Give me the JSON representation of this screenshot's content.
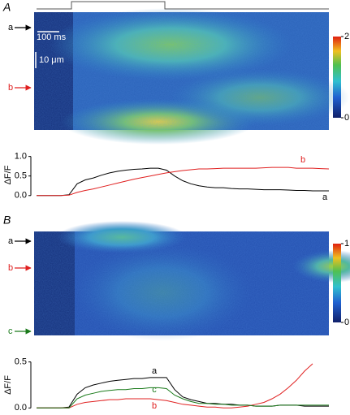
{
  "chart_data": [
    {
      "type": "line",
      "panel": "A",
      "ylabel": "ΔF/F",
      "scale_bars": [
        "100 ms",
        "10 μm"
      ],
      "ylim": [
        -0.15,
        1.2
      ],
      "yticks": [
        {
          "value": 0,
          "label": "0.0"
        },
        {
          "value": 0.5,
          "label": "0.5"
        },
        {
          "value": 1,
          "label": "1.0"
        }
      ],
      "colorbar": {
        "lim": [
          0,
          2
        ],
        "ticks": [
          0,
          2
        ]
      },
      "series": [
        {
          "name": "a",
          "color": "#000000",
          "values": [
            0,
            0,
            0,
            0,
            0.02,
            0.3,
            0.4,
            0.45,
            0.52,
            0.58,
            0.62,
            0.65,
            0.67,
            0.68,
            0.7,
            0.7,
            0.65,
            0.5,
            0.38,
            0.3,
            0.25,
            0.22,
            0.2,
            0.2,
            0.18,
            0.17,
            0.17,
            0.16,
            0.15,
            0.15,
            0.15,
            0.14,
            0.13,
            0.13,
            0.12,
            0.12,
            0.12
          ]
        },
        {
          "name": "b",
          "color": "#e02020",
          "values": [
            0,
            0,
            0,
            0,
            0.01,
            0.08,
            0.13,
            0.17,
            0.22,
            0.27,
            0.32,
            0.37,
            0.42,
            0.46,
            0.5,
            0.54,
            0.58,
            0.61,
            0.64,
            0.66,
            0.68,
            0.68,
            0.69,
            0.7,
            0.7,
            0.7,
            0.7,
            0.7,
            0.71,
            0.72,
            0.72,
            0.72,
            0.7,
            0.7,
            0.7,
            0.69,
            0.68
          ]
        }
      ]
    },
    {
      "type": "line",
      "panel": "B",
      "ylabel": "ΔF/F",
      "ylim": [
        -0.05,
        0.55
      ],
      "yticks": [
        {
          "value": 0,
          "label": "0.0"
        },
        0.5
      ],
      "colorbar": {
        "lim": [
          0,
          1
        ],
        "ticks": [
          0,
          1
        ]
      },
      "series": [
        {
          "name": "a",
          "color": "#000000",
          "values": [
            0,
            0,
            0,
            0,
            0.01,
            0.15,
            0.22,
            0.25,
            0.27,
            0.29,
            0.3,
            0.31,
            0.32,
            0.32,
            0.33,
            0.33,
            0.33,
            0.2,
            0.12,
            0.09,
            0.07,
            0.05,
            0.05,
            0.04,
            0.04,
            0.03,
            0.03,
            0.02,
            0.02,
            0.02,
            0.03,
            0.03,
            0.03,
            0.02,
            0.02,
            0.02,
            0.02
          ]
        },
        {
          "name": "b",
          "color": "#e02020",
          "values": [
            0,
            0,
            0,
            0,
            0,
            0.04,
            0.06,
            0.07,
            0.08,
            0.09,
            0.09,
            0.1,
            0.1,
            0.1,
            0.1,
            0.09,
            0.08,
            0.06,
            0.04,
            0.03,
            0.02,
            0.01,
            0.01,
            0,
            0,
            0.01,
            0.02,
            0.04,
            0.06,
            0.1,
            0.15,
            0.22,
            0.3,
            0.4,
            0.48,
            null,
            null
          ]
        },
        {
          "name": "c",
          "color": "#1a7a1a",
          "values": [
            0,
            0,
            0,
            0,
            0,
            0.1,
            0.14,
            0.16,
            0.18,
            0.19,
            0.2,
            0.2,
            0.21,
            0.21,
            0.22,
            0.22,
            0.21,
            0.14,
            0.1,
            0.07,
            0.05,
            0.05,
            0.04,
            0.04,
            0.03,
            0.03,
            0.03,
            0.02,
            0.02,
            0.02,
            0.03,
            0.03,
            0.03,
            0.03,
            0.03,
            0.03,
            0.03
          ]
        }
      ]
    }
  ]
}
